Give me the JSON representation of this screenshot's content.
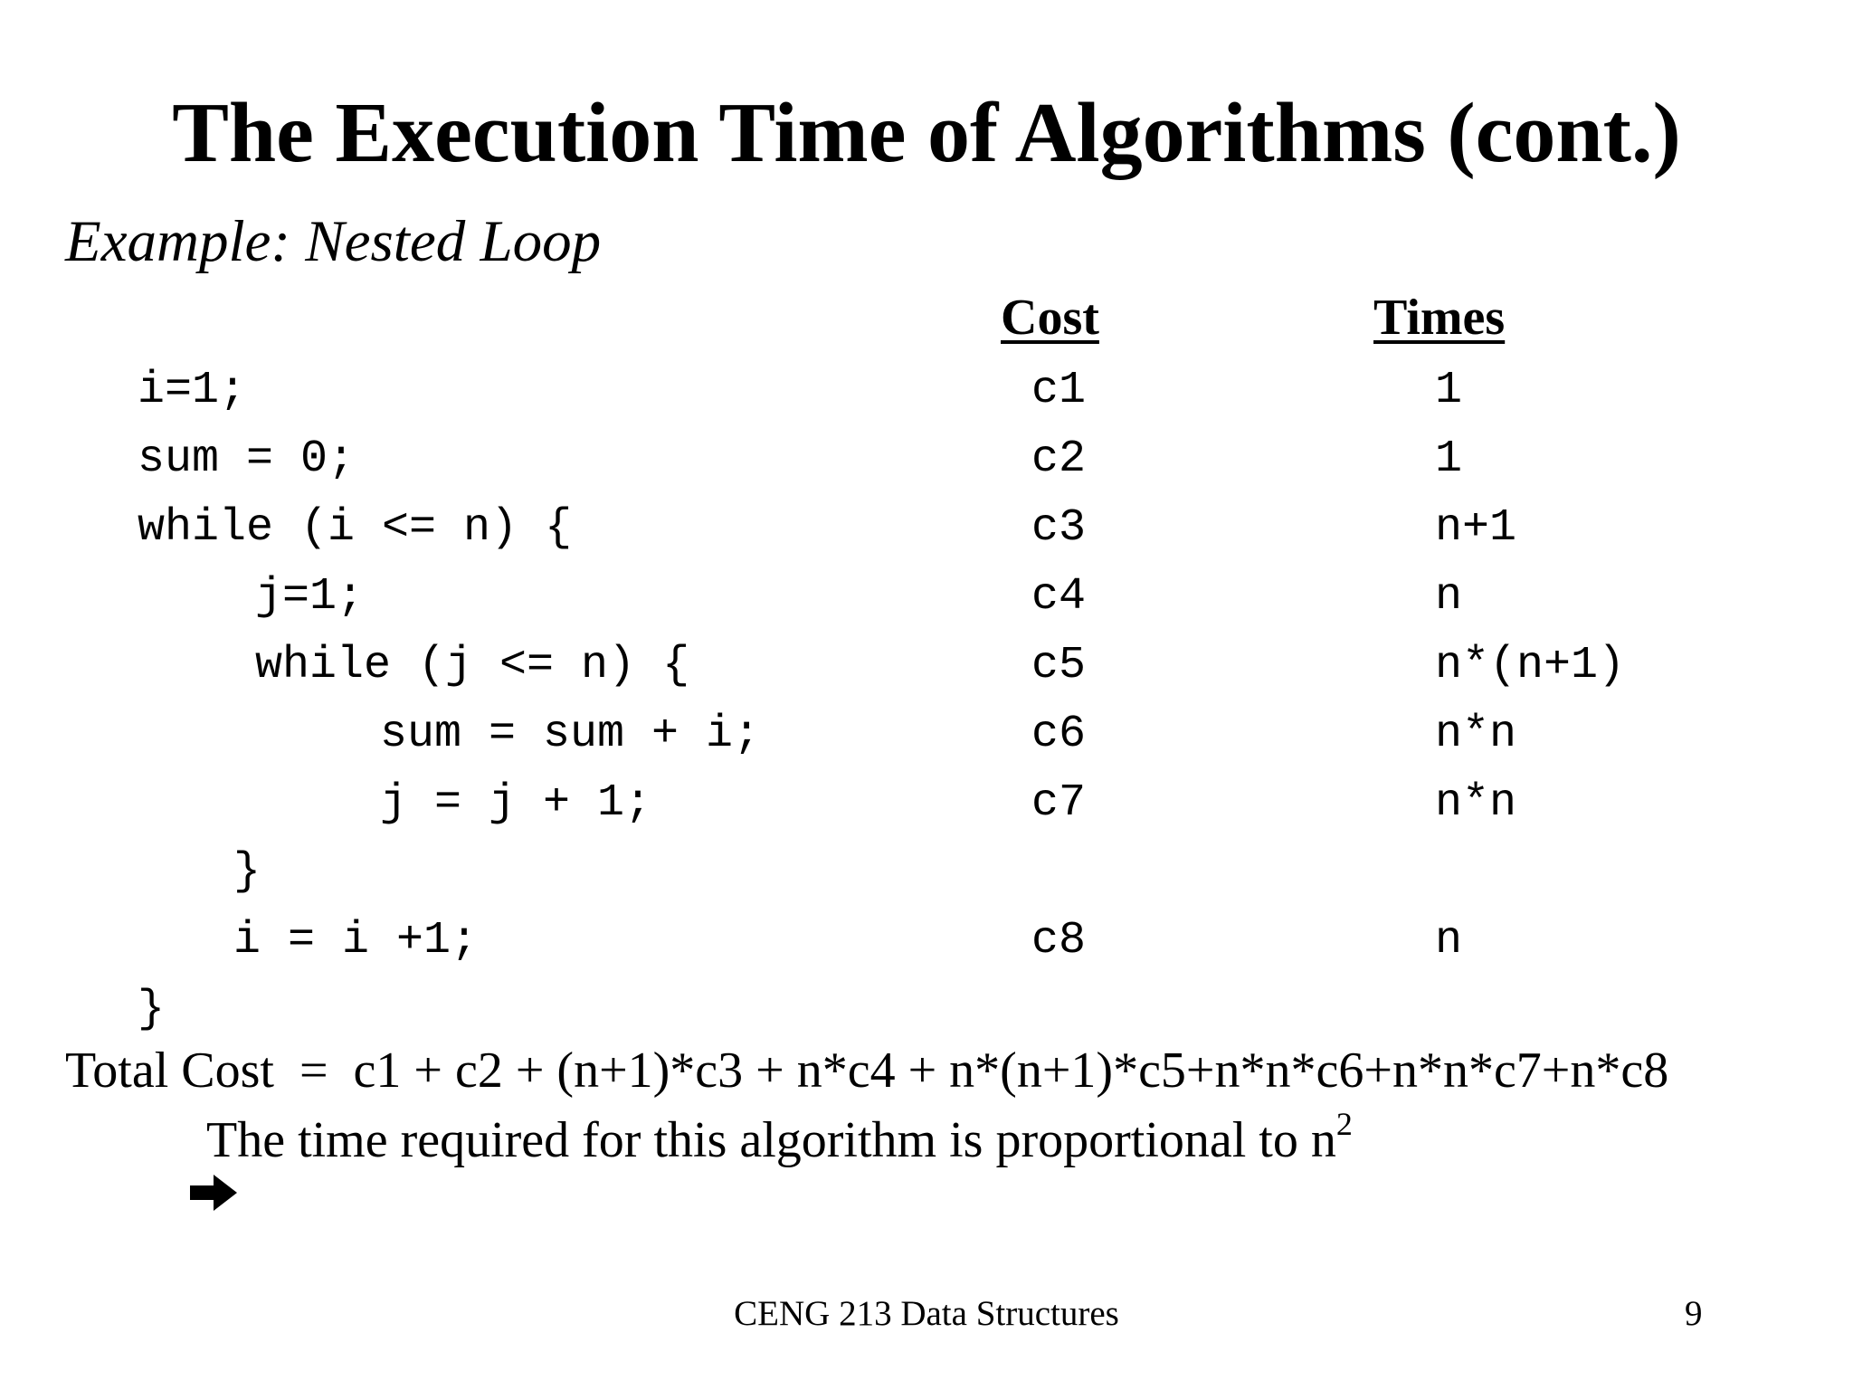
{
  "slide": {
    "title": "The Execution Time of Algorithms (cont.)",
    "subtitle": "Example: Nested Loop"
  },
  "table": {
    "headers": {
      "cost": "Cost",
      "times": "Times"
    },
    "rows": [
      {
        "code": "i=1;",
        "cost": "c1",
        "times": "1"
      },
      {
        "code": "sum = 0;",
        "cost": "c2",
        "times": "1"
      },
      {
        "code": "while (i <= n) {",
        "cost": "c3",
        "times": "n+1"
      },
      {
        "code": "j=1;",
        "cost": "c4",
        "times": "n"
      },
      {
        "code": "while (j <= n) {",
        "cost": "c5",
        "times": "n*(n+1)"
      },
      {
        "code": "sum = sum + i;",
        "cost": "c6",
        "times": "n*n"
      },
      {
        "code": "j = j + 1;",
        "cost": "c7",
        "times": "n*n"
      },
      {
        "code": "}",
        "cost": "",
        "times": ""
      },
      {
        "code": "i = i +1;",
        "cost": "c8",
        "times": "n"
      },
      {
        "code": "}",
        "cost": "",
        "times": ""
      }
    ]
  },
  "summary": {
    "total_cost": "Total Cost  =  c1 + c2 + (n+1)*c3 + n*c4 + n*(n+1)*c5+n*n*c6+n*n*c7+n*c8",
    "conclusion": "The time required for this algorithm is proportional to n",
    "conclusion_exponent": "2",
    "arrow_icon": "right-arrow-icon"
  },
  "footer": {
    "course": "CENG 213 Data Structures",
    "page_number": "9"
  }
}
